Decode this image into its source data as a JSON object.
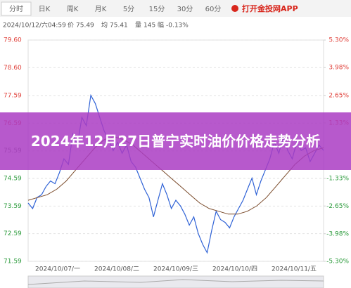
{
  "tabs": [
    "分时",
    "日K",
    "周K",
    "月K",
    "5分",
    "15分",
    "30分",
    "60分"
  ],
  "app_link": "打开金投网APP",
  "info": {
    "time": "2024/10/12/六04:59",
    "price_label": "价",
    "price": "75.49",
    "avg_label": "均",
    "avg": "75.41",
    "vol_label": "量",
    "vol": "145",
    "amp_label": "幅",
    "amp": "-0.13%"
  },
  "overlay_title": "2024年12月27日普宁实时油价价格走势分析",
  "chart_data": {
    "type": "line",
    "date_labels": [
      "2024/10/07/一",
      "2024/10/08/二",
      "2024/10/09/三",
      "2024/10/10/四",
      "2024/10/11/五"
    ],
    "series": [
      {
        "name": "价",
        "color": "#2f62d6",
        "values": [
          73.7,
          73.5,
          73.9,
          74.0,
          74.3,
          74.5,
          74.4,
          74.8,
          75.3,
          75.1,
          76.2,
          75.8,
          76.8,
          76.5,
          77.6,
          77.3,
          76.8,
          76.3,
          76.0,
          75.6,
          75.9,
          75.5,
          75.8,
          75.2,
          75.0,
          74.6,
          74.2,
          73.9,
          73.2,
          73.8,
          74.4,
          74.0,
          73.5,
          73.8,
          73.6,
          73.3,
          72.9,
          73.2,
          72.6,
          72.2,
          71.9,
          72.7,
          73.4,
          73.1,
          73.0,
          72.8,
          73.2,
          73.5,
          73.8,
          74.2,
          74.6,
          74.0,
          74.5,
          74.9,
          75.3,
          75.9,
          75.5,
          76.1,
          75.6,
          75.3,
          75.9,
          75.6,
          75.7,
          75.2,
          75.5,
          75.8,
          75.6
        ]
      },
      {
        "name": "均",
        "color": "#7a4a2a",
        "values": [
          73.8,
          73.9,
          74.0,
          74.2,
          74.5,
          74.9,
          75.3,
          75.7,
          76.0,
          76.1,
          76.0,
          75.8,
          75.5,
          75.2,
          74.9,
          74.6,
          74.3,
          74.0,
          73.7,
          73.5,
          73.4,
          73.3,
          73.3,
          73.4,
          73.6,
          73.9,
          74.3,
          74.7,
          75.1,
          75.4,
          75.6,
          75.7
        ]
      }
    ],
    "ylim": [
      71.59,
      79.6
    ],
    "yticks": [
      {
        "value": 79.6,
        "label": "79.60"
      },
      {
        "value": 78.6,
        "label": "78.60"
      },
      77.59,
      76.59,
      75.59,
      74.59,
      73.59,
      72.59,
      71.59
    ],
    "y2lim": [
      -5.3,
      5.3
    ],
    "y2ticks": [
      {
        "value": 5.3,
        "label": "5.30%"
      },
      {
        "value": 3.98,
        "label": "3.98%"
      },
      {
        "value": 2.65,
        "label": "2.65%"
      },
      {
        "value": 1.33,
        "label": "1.33%"
      },
      {
        "value": -1.33,
        "label": "-1.33%"
      },
      {
        "value": -2.65,
        "label": "-2.65%"
      },
      {
        "value": -3.98,
        "label": "-3.98%"
      },
      {
        "value": -5.3,
        "label": "-5.30%"
      }
    ],
    "grid": true
  }
}
